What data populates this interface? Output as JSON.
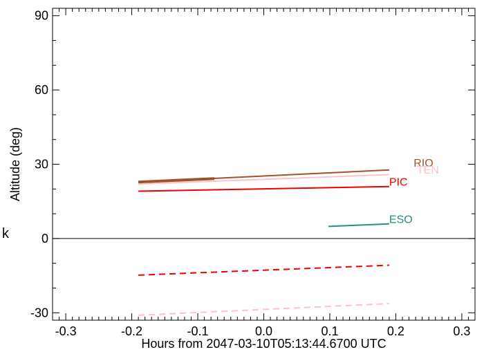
{
  "chart_data": {
    "type": "line",
    "xlabel": "Hours from 2047-03-10T05:13:44.6700 UTC",
    "ylabel": "Altitude (deg)",
    "xlim": [
      -0.32,
      0.32
    ],
    "ylim": [
      -33,
      93
    ],
    "xticks": [
      -0.3,
      -0.2,
      -0.1,
      0.0,
      0.1,
      0.2,
      0.3
    ],
    "xtick_labels": [
      "-0.3",
      "-0.2",
      "-0.1",
      "0.0",
      "0.1",
      "0.2",
      "0.3"
    ],
    "yticks": [
      -30,
      0,
      30,
      60,
      90
    ],
    "ytick_labels": [
      "-30",
      "0",
      "30",
      "60",
      "90"
    ],
    "zero_line": true,
    "side_label": "k",
    "series": [
      {
        "name": "RIO",
        "color": "#a0522d",
        "style": "solid",
        "x": [
          -0.19,
          0.19
        ],
        "y": [
          22.8,
          27.7
        ],
        "label_at": [
          0.227,
          29.0
        ],
        "thick_x": [
          -0.19,
          -0.075
        ],
        "thick_y": [
          22.8,
          24.2
        ]
      },
      {
        "name": "TEN",
        "color": "#ffc0cb",
        "style": "solid",
        "x": [
          -0.19,
          0.19
        ],
        "y": [
          22.0,
          25.8
        ],
        "label_at": [
          0.232,
          26.2
        ]
      },
      {
        "name": "PIC",
        "color": "#ee0000",
        "style": "solid",
        "x": [
          -0.19,
          0.19
        ],
        "y": [
          19.1,
          21.0
        ],
        "label_at": [
          0.19,
          21.3
        ]
      },
      {
        "name": "ESO",
        "color": "#2e8b82",
        "style": "solid",
        "x": [
          0.098,
          0.19
        ],
        "y": [
          4.9,
          5.9
        ],
        "label_at": [
          0.19,
          6.3
        ]
      },
      {
        "name": "",
        "color": "#ee0000",
        "style": "dashed",
        "x": [
          -0.19,
          0.19
        ],
        "y": [
          -14.8,
          -10.8
        ]
      },
      {
        "name": "",
        "color": "#ffc0cb",
        "style": "dashed",
        "x": [
          -0.19,
          0.19
        ],
        "y": [
          -31.0,
          -26.3
        ]
      }
    ]
  }
}
